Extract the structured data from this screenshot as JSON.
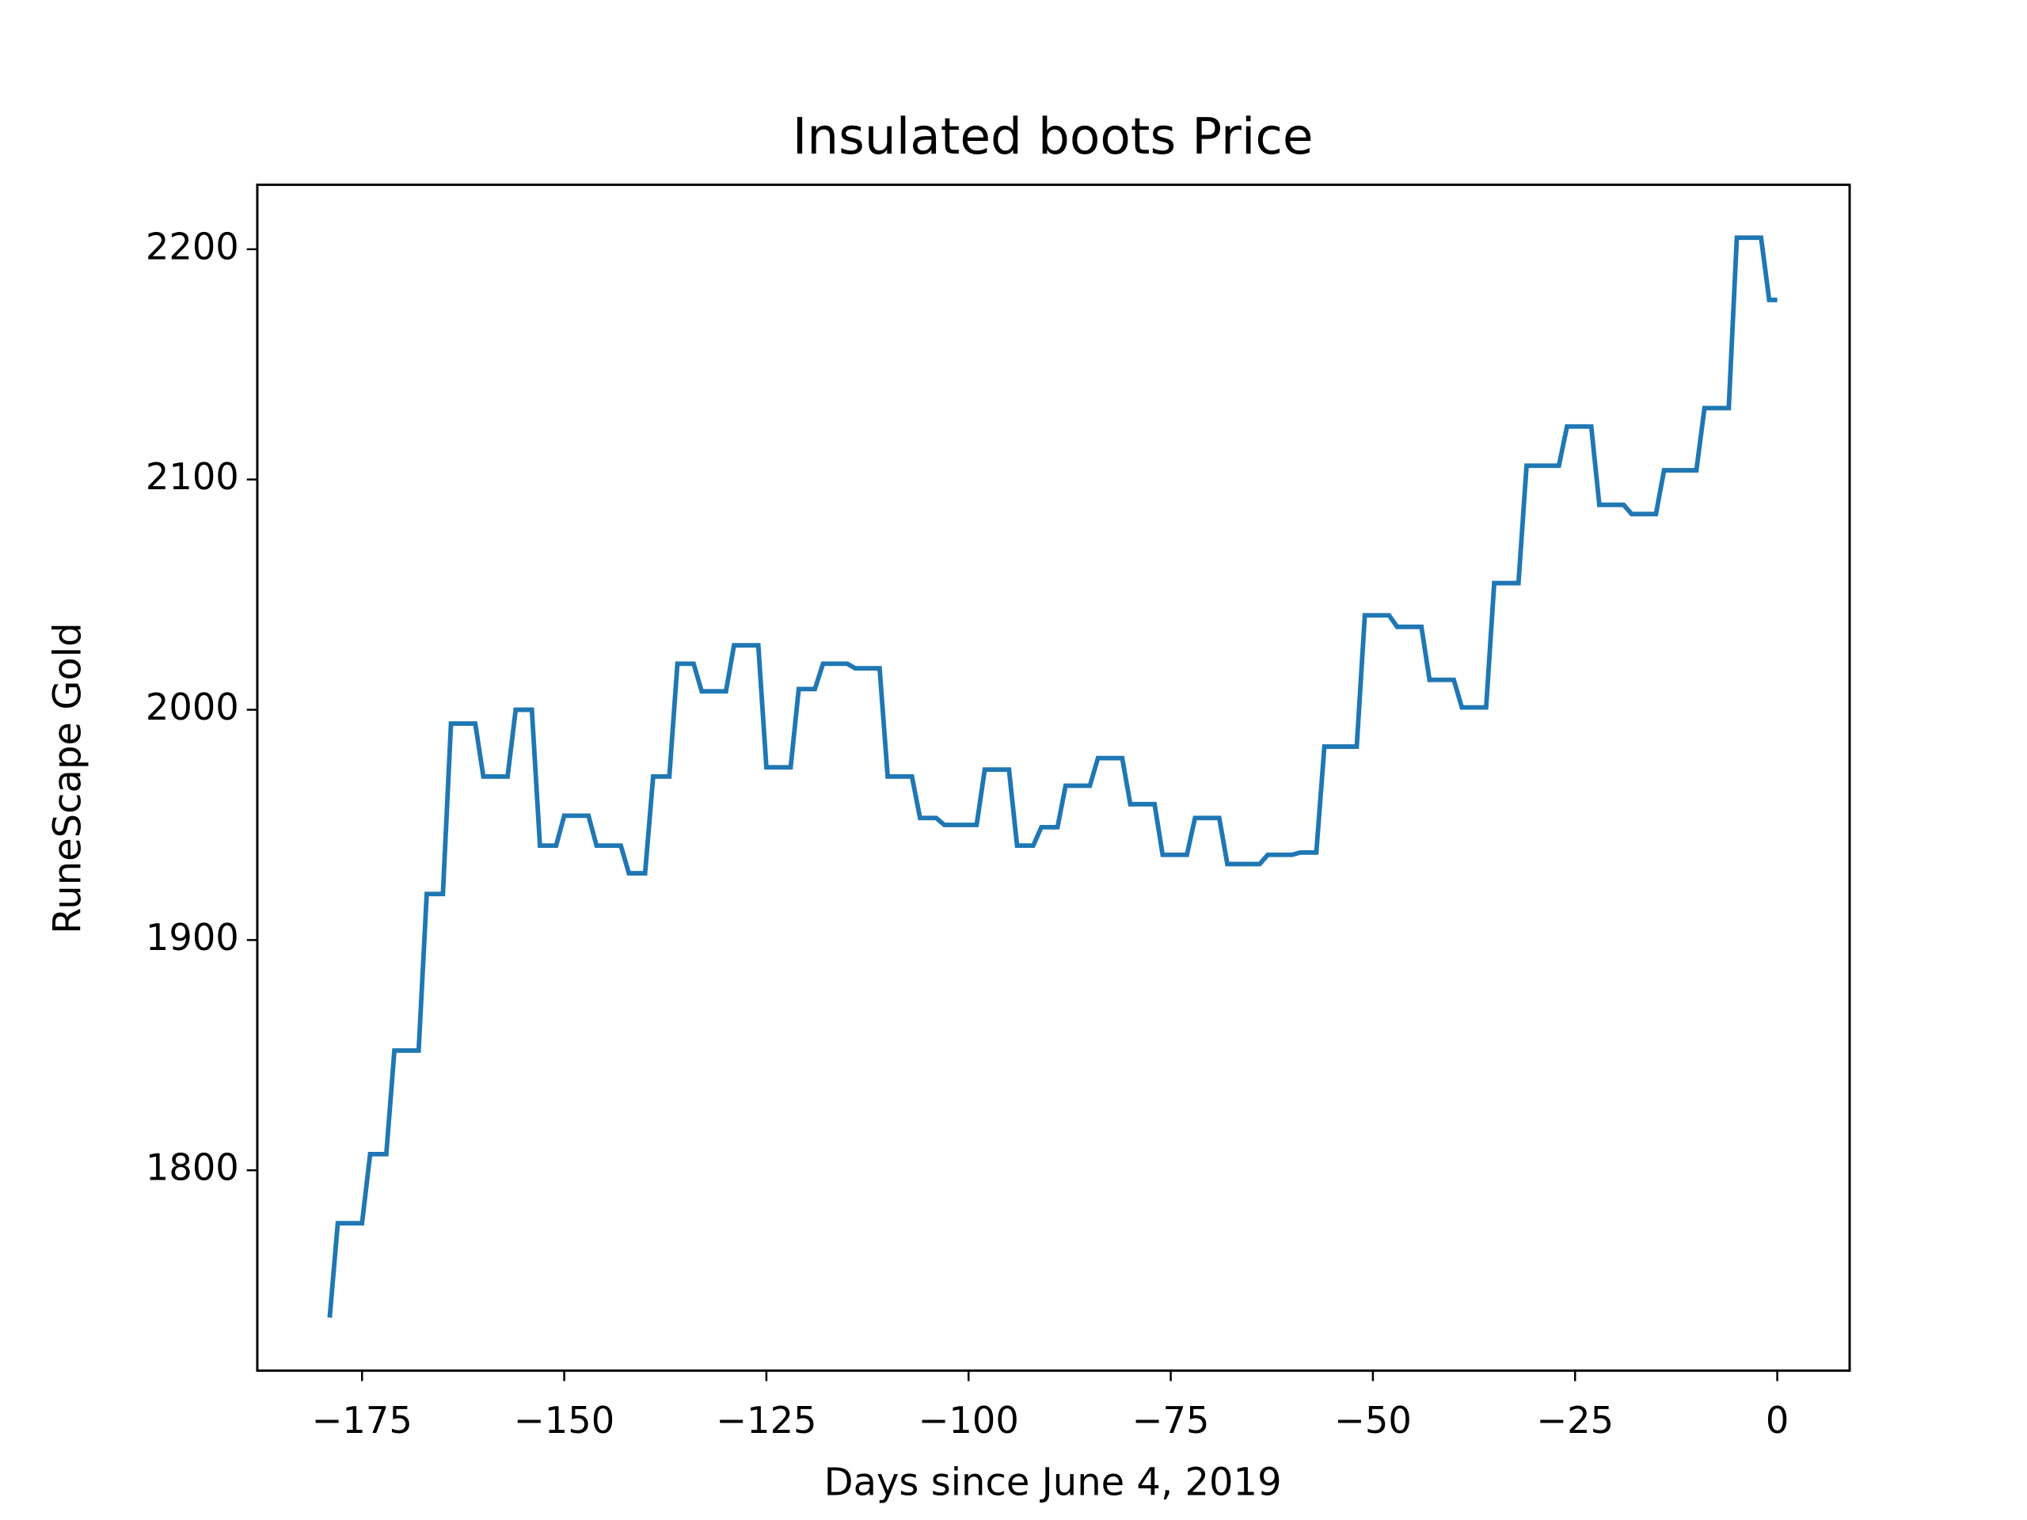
{
  "chart_data": {
    "type": "line",
    "title": "Insulated boots Price",
    "xlabel": "Days since June 4, 2019",
    "ylabel": "RuneScape Gold",
    "x": [
      -179,
      -178,
      -175,
      -174,
      -172,
      -171,
      -168,
      -167,
      -165,
      -164,
      -161,
      -160,
      -157,
      -156,
      -154,
      -153,
      -151,
      -150,
      -147,
      -146,
      -143,
      -142,
      -140,
      -139,
      -137,
      -136,
      -134,
      -133,
      -130,
      -129,
      -126,
      -125,
      -122,
      -121,
      -119,
      -118,
      -115,
      -114,
      -111,
      -110,
      -107,
      -106,
      -104,
      -103,
      -99,
      -98,
      -95,
      -94,
      -92,
      -91,
      -89,
      -88,
      -85,
      -84,
      -81,
      -80,
      -77,
      -76,
      -73,
      -72,
      -69,
      -68,
      -64,
      -63,
      -60,
      -59,
      -57,
      -56,
      -52,
      -51,
      -48,
      -47,
      -44,
      -43,
      -40,
      -39,
      -36,
      -35,
      -32,
      -31,
      -27,
      -26,
      -23,
      -22,
      -19,
      -18,
      -15,
      -14,
      -10,
      -9,
      -6,
      -5,
      -2,
      -1,
      0
    ],
    "series": [
      {
        "name": "Insulated boots",
        "color": "#1f77b4",
        "values": [
          1736,
          1777,
          1777,
          1807,
          1807,
          1852,
          1852,
          1920,
          1920,
          1994,
          1994,
          1971,
          1971,
          2000,
          2000,
          1941,
          1941,
          1954,
          1954,
          1941,
          1941,
          1929,
          1929,
          1971,
          1971,
          2020,
          2020,
          2008,
          2008,
          2028,
          2028,
          1975,
          1975,
          2009,
          2009,
          2020,
          2020,
          2018,
          2018,
          1971,
          1971,
          1953,
          1953,
          1950,
          1950,
          1974,
          1974,
          1941,
          1941,
          1949,
          1949,
          1967,
          1967,
          1979,
          1979,
          1959,
          1959,
          1937,
          1937,
          1953,
          1953,
          1933,
          1933,
          1937,
          1937,
          1938,
          1938,
          1984,
          1984,
          2041,
          2041,
          2036,
          2036,
          2013,
          2013,
          2001,
          2001,
          2055,
          2055,
          2106,
          2106,
          2123,
          2123,
          2089,
          2089,
          2085,
          2085,
          2104,
          2104,
          2131,
          2131,
          2205,
          2205,
          2178,
          2178
        ]
      }
    ],
    "xlim": [
      -187.95,
      8.95
    ],
    "xticks": [
      {
        "value": -175,
        "label": "−175"
      },
      {
        "value": -150,
        "label": "−150"
      },
      {
        "value": -125,
        "label": "−125"
      },
      {
        "value": -100,
        "label": "−100"
      },
      {
        "value": -75,
        "label": "−75"
      },
      {
        "value": -50,
        "label": "−50"
      },
      {
        "value": -25,
        "label": "−25"
      },
      0
    ],
    "ylim": [
      1713,
      2228
    ],
    "yticks": [
      1800,
      1900,
      2000,
      2100,
      2200
    ]
  }
}
